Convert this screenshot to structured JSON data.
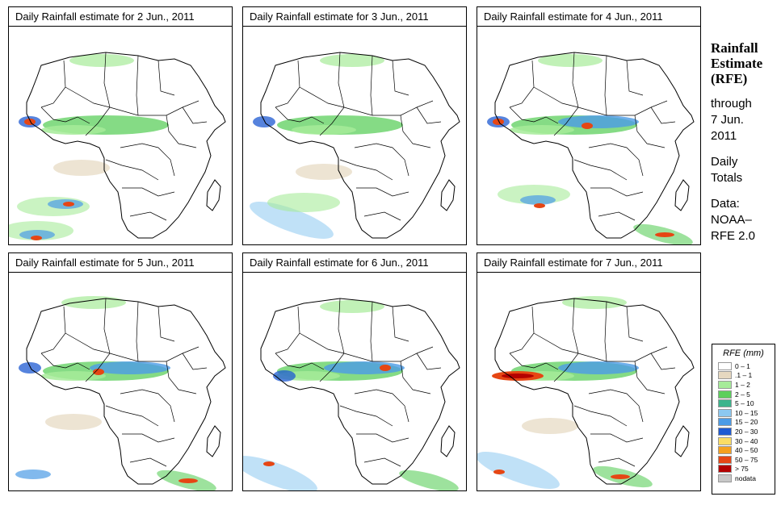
{
  "panels": [
    {
      "title": "Daily Rainfall estimate for  2 Jun., 2011",
      "day": 2
    },
    {
      "title": "Daily Rainfall estimate for  3 Jun., 2011",
      "day": 3
    },
    {
      "title": "Daily Rainfall estimate for  4 Jun., 2011",
      "day": 4
    },
    {
      "title": "Daily Rainfall estimate for  5 Jun., 2011",
      "day": 5
    },
    {
      "title": "Daily Rainfall estimate for  6 Jun., 2011",
      "day": 6
    },
    {
      "title": "Daily Rainfall estimate for  7 Jun., 2011",
      "day": 7
    }
  ],
  "side": {
    "title1": "Rainfall",
    "title2": "Estimate",
    "title3": "(RFE)",
    "through": "through",
    "date1": "7 Jun.",
    "date2": "2011",
    "totals1": "Daily",
    "totals2": "Totals",
    "data1": "Data:",
    "data2": "NOAA–",
    "data3": "RFE 2.0"
  },
  "legend": {
    "title": "RFE (mm)",
    "items": [
      {
        "label": "0 – 1",
        "color": "#ffffff"
      },
      {
        "label": ".1 – 1",
        "color": "#e6d8c0"
      },
      {
        "label": "1 – 2",
        "color": "#a6eb99"
      },
      {
        "label": "2 – 5",
        "color": "#5ccf5c"
      },
      {
        "label": "5 – 10",
        "color": "#3cb48c"
      },
      {
        "label": "10 – 15",
        "color": "#8cc8f0"
      },
      {
        "label": "15 – 20",
        "color": "#4b9be6"
      },
      {
        "label": "20 – 30",
        "color": "#1e5ad2"
      },
      {
        "label": "30 – 40",
        "color": "#fadc64"
      },
      {
        "label": "40 – 50",
        "color": "#f5a01e"
      },
      {
        "label": "50 – 75",
        "color": "#e64614"
      },
      {
        "label": "> 75",
        "color": "#b40000"
      },
      {
        "label": "nodata",
        "color": "#c8c8c8"
      }
    ]
  }
}
